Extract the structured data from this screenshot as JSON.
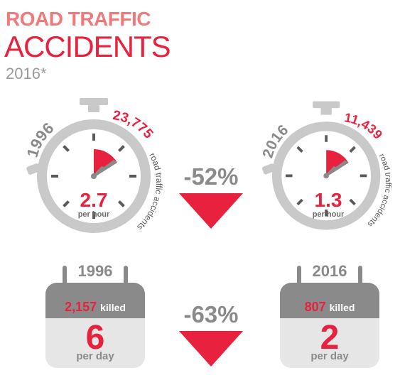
{
  "title": {
    "line1": "ROAD TRAFFIC",
    "line2": "ACCIDENTS",
    "line3": "2016*"
  },
  "stopwatches": [
    {
      "year": "1996",
      "accidents": "23,775",
      "caption": "road traffic accidents",
      "rate": "2.7",
      "rate_unit": "per hour"
    },
    {
      "year": "2016",
      "accidents": "11,439",
      "caption": "road traffic accidents",
      "rate": "1.3",
      "rate_unit": "per hour"
    }
  ],
  "change_accidents": "-52%",
  "change_killed": "-63%",
  "calendars": [
    {
      "year": "1996",
      "killed_number": "2,157",
      "killed_label": "killed",
      "per_day": "6",
      "per_day_unit": "per day"
    },
    {
      "year": "2016",
      "killed_number": "807",
      "killed_label": "killed",
      "per_day": "2",
      "per_day_unit": "per day"
    }
  ],
  "colors": {
    "red": "#e8213e",
    "pink": "#ef7a7c",
    "gray": "#c9c9c9",
    "dark_gray": "#8a8a8a"
  }
}
